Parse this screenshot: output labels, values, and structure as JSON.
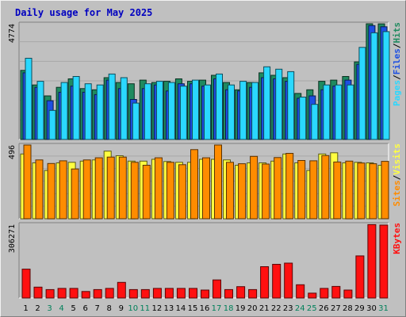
{
  "chart_data": {
    "type": "bar",
    "title": "Daily usage for May 2025",
    "categories": [
      "1",
      "2",
      "3",
      "4",
      "5",
      "6",
      "7",
      "8",
      "9",
      "10",
      "11",
      "12",
      "13",
      "14",
      "15",
      "16",
      "17",
      "18",
      "19",
      "20",
      "21",
      "22",
      "23",
      "24",
      "25",
      "26",
      "27",
      "28",
      "29",
      "30",
      "31"
    ],
    "weekend_days": [
      "3",
      "4",
      "10",
      "11",
      "17",
      "18",
      "24",
      "25",
      "31"
    ],
    "panels": [
      {
        "id": "hits",
        "max_label": "4774",
        "ymax": 4774,
        "grid": true,
        "right_labels": [
          "Pages",
          "Files",
          "Hits"
        ],
        "series": [
          {
            "name": "Hits",
            "color": "#1f8a5f",
            "values": [
              2850,
              2250,
              1800,
              2150,
              2500,
              2100,
              2050,
              2550,
              2350,
              2300,
              2450,
              2350,
              2400,
              2500,
              2400,
              2450,
              2650,
              2350,
              2050,
              2350,
              2750,
              2650,
              2550,
              1900,
              2050,
              2400,
              2450,
              2600,
              3200,
              4774,
              4770
            ]
          },
          {
            "name": "Files",
            "color": "#1d4fe2",
            "values": [
              2750,
              2150,
              1600,
              1950,
              2200,
              1950,
              1850,
              2450,
              2100,
              1650,
              2100,
              2250,
              2000,
              2300,
              2300,
              2200,
              2500,
              2050,
              2000,
              2150,
              2550,
              2500,
              2400,
              1700,
              1800,
              2050,
              2200,
              2450,
              3100,
              4700,
              4650
            ]
          },
          {
            "name": "Pages",
            "color": "#2ad8ff",
            "values": [
              3350,
              2400,
              1200,
              2350,
              2600,
              2300,
              2250,
              2700,
              2550,
              1500,
              2300,
              2400,
              2350,
              2200,
              2450,
              2250,
              2700,
              2250,
              2400,
              2350,
              3000,
              2900,
              2800,
              1750,
              1450,
              2250,
              2250,
              2250,
              3800,
              4400,
              4450
            ]
          }
        ]
      },
      {
        "id": "visits",
        "max_label": "496",
        "ymax": 496,
        "grid": true,
        "right_labels": [
          "Sites",
          "Visits"
        ],
        "series": [
          {
            "name": "Visits",
            "color": "#ffff40",
            "values": [
              436,
              376,
              325,
              376,
              380,
              388,
              396,
              455,
              424,
              388,
              388,
              400,
              385,
              380,
              380,
              400,
              400,
              396,
              360,
              376,
              376,
              388,
              436,
              376,
              325,
              436,
              444,
              376,
              380,
              376,
              360
            ]
          },
          {
            "name": "Sites",
            "color": "#ff8c00",
            "values": [
              496,
              396,
              372,
              390,
              335,
              396,
              410,
              415,
              415,
              380,
              360,
              410,
              380,
              364,
              465,
              410,
              496,
              380,
              370,
              420,
              368,
              412,
              440,
              392,
              390,
              425,
              382,
              388,
              375,
              370,
              386
            ]
          }
        ]
      },
      {
        "id": "kbytes",
        "max_label": "306271",
        "ymax": 306271,
        "grid": false,
        "right_labels": [
          "KBytes"
        ],
        "series": [
          {
            "name": "KBytes",
            "color": "#ff1010",
            "values": [
              120000,
              45000,
              35000,
              40000,
              40000,
              27000,
              35000,
              40000,
              65000,
              35000,
              35000,
              40000,
              40000,
              40000,
              40000,
              33000,
              75000,
              35000,
              47000,
              35000,
              130000,
              140000,
              145000,
              55000,
              20000,
              40000,
              48000,
              33000,
              175000,
              305000,
              303000
            ]
          }
        ]
      }
    ]
  }
}
